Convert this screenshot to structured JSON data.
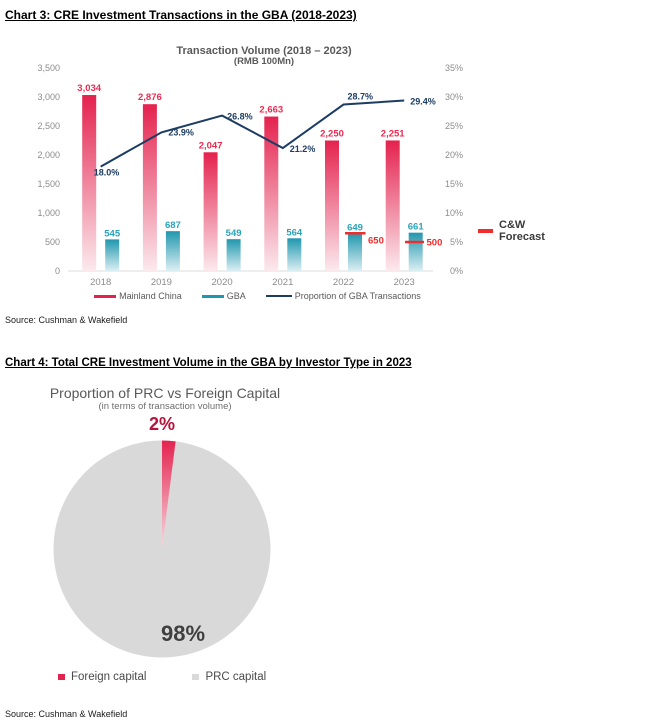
{
  "chart3": {
    "heading": "Chart 3: CRE Investment Transactions in the GBA (2018-2023)",
    "source": "Source: Cushman & Wakefield",
    "forecast_legend": {
      "line1": "C&W",
      "line2": "Forecast"
    },
    "chart_data": {
      "type": "bar",
      "title": "Transaction Volume (2018 – 2023)",
      "subtitle": "(RMB 100Mn)",
      "categories": [
        "2018",
        "2019",
        "2020",
        "2021",
        "2022",
        "2023"
      ],
      "series": [
        {
          "name": "Mainland China",
          "type": "bar",
          "axis": "left",
          "color": "#E4224E",
          "values": [
            3034,
            2876,
            2047,
            2663,
            2250,
            2251
          ],
          "labels": [
            "3,034",
            "2,876",
            "2,047",
            "2,663",
            "2,250",
            "2,251"
          ]
        },
        {
          "name": "GBA",
          "type": "bar",
          "axis": "left",
          "color": "#2097AE",
          "values": [
            545,
            687,
            549,
            564,
            649,
            661
          ],
          "labels": [
            "545",
            "687",
            "549",
            "564",
            "649",
            "661"
          ]
        },
        {
          "name": "Proportion of GBA Transactions",
          "type": "line",
          "axis": "right",
          "color": "#1C3C63",
          "values": [
            18.0,
            23.9,
            26.8,
            21.2,
            28.7,
            29.4
          ],
          "labels": [
            "18.0%",
            "23.9%",
            "26.8%",
            "21.2%",
            "28.7%",
            "29.4%"
          ]
        }
      ],
      "forecast": {
        "name": "C&W Forecast",
        "color": "#F02C2C",
        "points": [
          {
            "category": "2022",
            "value": 650,
            "label": "650"
          },
          {
            "category": "2023",
            "value": 500,
            "label": "500"
          }
        ]
      },
      "left_axis": {
        "min": 0,
        "max": 3500,
        "step": 500,
        "labels": [
          "0",
          "500",
          "1,000",
          "1,500",
          "2,000",
          "2,500",
          "3,000",
          "3,500"
        ]
      },
      "right_axis": {
        "min": 0,
        "max": 35,
        "step": 5,
        "labels": [
          "0%",
          "5%",
          "10%",
          "15%",
          "20%",
          "25%",
          "30%",
          "35%"
        ]
      },
      "grid": "off",
      "legend_position": "bottom"
    }
  },
  "chart4": {
    "heading": "Chart 4: Total CRE Investment Volume in the GBA by Investor Type in 2023",
    "source": "Source: Cushman & Wakefield",
    "chart_data": {
      "type": "pie",
      "title": "Proportion of PRC vs Foreign Capital",
      "subtitle": "(in terms of transaction volume)",
      "slices": [
        {
          "label": "Foreign capital",
          "value": 2,
          "display": "2%",
          "color": "#E3224E"
        },
        {
          "label": "PRC capital",
          "value": 98,
          "display": "98%",
          "color": "#D9D9D9"
        }
      ],
      "legend_position": "bottom"
    }
  },
  "colors": {
    "mainland_red": "#E4224E",
    "gba_teal": "#2097AE",
    "proportion_navy": "#1C3C63",
    "forecast_red": "#F02C2C",
    "pie_foreign_red": "#E3224E",
    "pie_prc_gray": "#D9D9D9",
    "dark_red_label": "#B5123C",
    "axis_gray": "#8C8C8C"
  }
}
